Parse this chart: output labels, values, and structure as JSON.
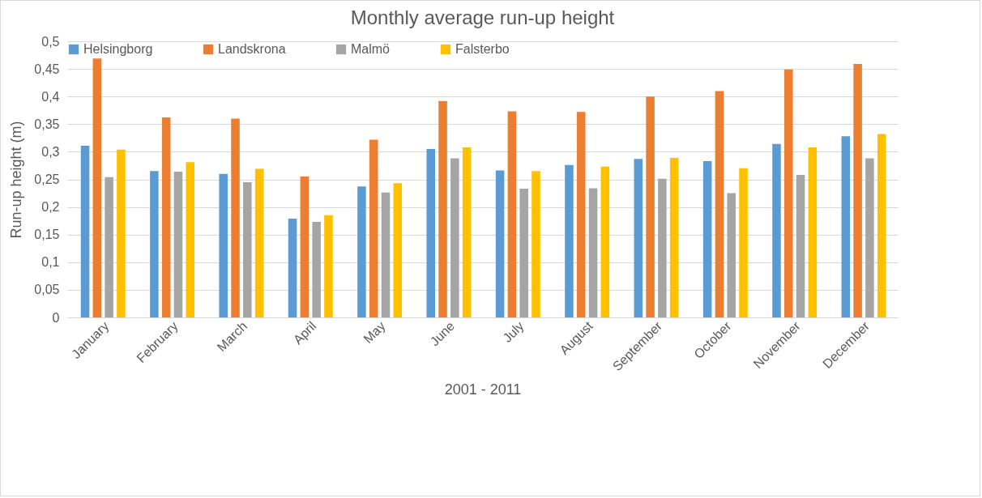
{
  "chart_data": {
    "type": "bar",
    "title": "Monthly average run-up height",
    "xlabel": "2001 - 2011",
    "ylabel": "Run-up height (m)",
    "categories": [
      "January",
      "February",
      "March",
      "April",
      "May",
      "June",
      "July",
      "August",
      "September",
      "October",
      "November",
      "December"
    ],
    "series": [
      {
        "name": "Helsingborg",
        "color": "#5b9bd5",
        "values": [
          0.311,
          0.265,
          0.26,
          0.179,
          0.237,
          0.305,
          0.266,
          0.276,
          0.287,
          0.283,
          0.314,
          0.328
        ]
      },
      {
        "name": "Landskrona",
        "color": "#ed7d31",
        "values": [
          0.469,
          0.362,
          0.36,
          0.255,
          0.322,
          0.392,
          0.373,
          0.372,
          0.4,
          0.41,
          0.449,
          0.459
        ]
      },
      {
        "name": "Malmö",
        "color": "#a5a5a5",
        "values": [
          0.254,
          0.264,
          0.245,
          0.173,
          0.226,
          0.288,
          0.233,
          0.234,
          0.251,
          0.225,
          0.258,
          0.288
        ]
      },
      {
        "name": "Falsterbo",
        "color": "#ffc000",
        "values": [
          0.304,
          0.281,
          0.269,
          0.185,
          0.243,
          0.308,
          0.265,
          0.273,
          0.289,
          0.27,
          0.308,
          0.332
        ]
      }
    ],
    "ylim": [
      0,
      0.5
    ],
    "yticks": [
      0,
      {
        "value": 0.05,
        "label": "0,05"
      },
      {
        "value": 0.1,
        "label": "0,1"
      },
      {
        "value": 0.15,
        "label": "0,15"
      },
      {
        "value": 0.2,
        "label": "0,2"
      },
      {
        "value": 0.25,
        "label": "0,25"
      },
      {
        "value": 0.3,
        "label": "0,3"
      },
      {
        "value": 0.35,
        "label": "0,35"
      },
      {
        "value": 0.4,
        "label": "0,4"
      },
      {
        "value": 0.45,
        "label": "0,45"
      },
      {
        "value": 0.5,
        "label": "0,5"
      }
    ],
    "grid": "y",
    "legend": "top"
  }
}
